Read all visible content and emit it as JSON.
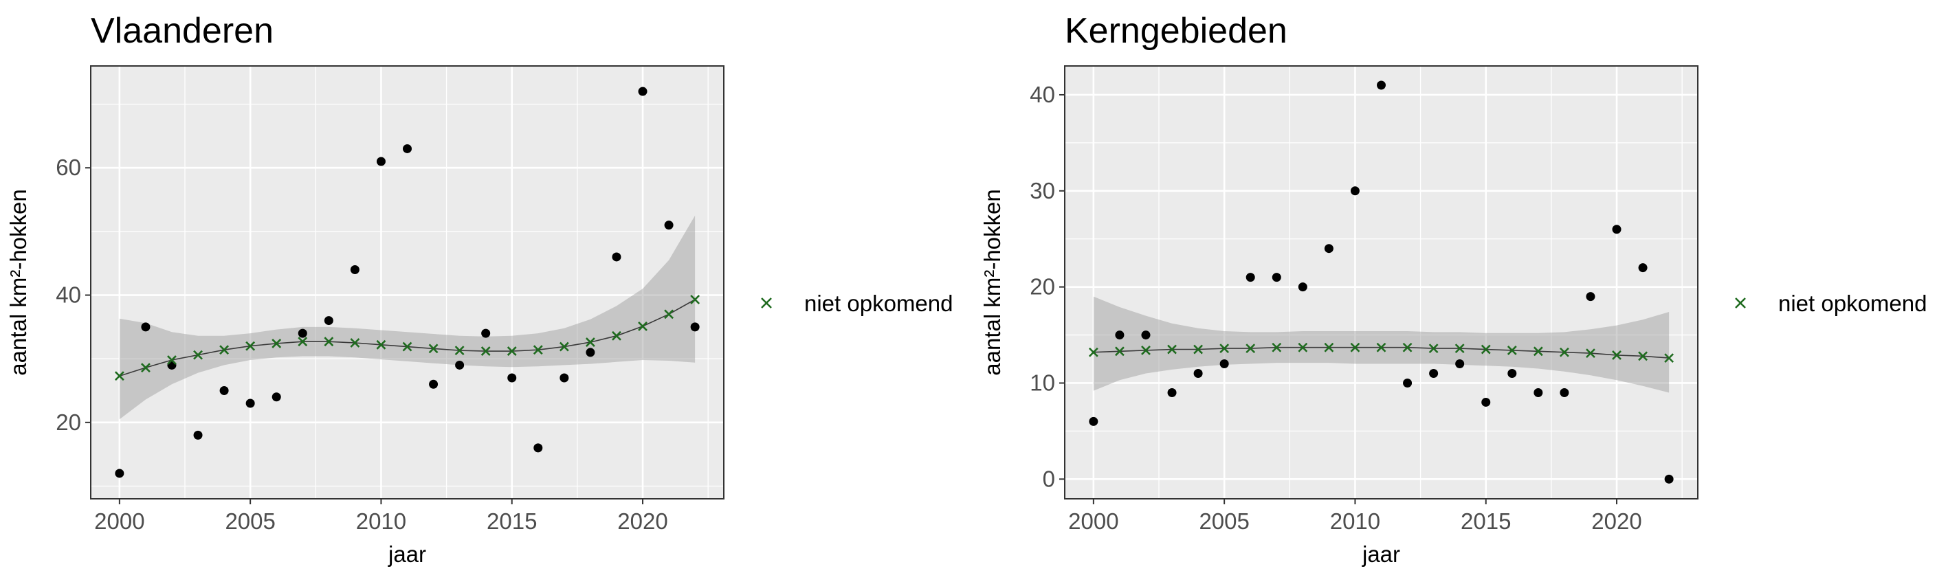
{
  "chart_data": [
    {
      "type": "scatter",
      "title": "Vlaanderen",
      "xlabel": "jaar",
      "ylabel": "aantal km²-hokken",
      "xlim": [
        1998.9,
        2023.1
      ],
      "ylim": [
        8.0,
        76.0
      ],
      "xticks": [
        2000,
        2005,
        2010,
        2015,
        2020
      ],
      "yticks": [
        20,
        40,
        60
      ],
      "x": [
        2000,
        2001,
        2002,
        2003,
        2004,
        2005,
        2006,
        2007,
        2008,
        2009,
        2010,
        2011,
        2012,
        2013,
        2014,
        2015,
        2016,
        2017,
        2018,
        2019,
        2020,
        2021,
        2022
      ],
      "observed": [
        12,
        35,
        29,
        18,
        25,
        23,
        24,
        34,
        36,
        44,
        61,
        63,
        26,
        29,
        34,
        27,
        16,
        27,
        31,
        46,
        72,
        51,
        35
      ],
      "fitted": [
        27.3,
        28.6,
        29.8,
        30.6,
        31.4,
        32.0,
        32.4,
        32.7,
        32.7,
        32.5,
        32.2,
        31.9,
        31.6,
        31.3,
        31.2,
        31.2,
        31.4,
        31.9,
        32.6,
        33.6,
        35.1,
        37.0,
        39.3
      ],
      "ci_lower": [
        20.5,
        23.6,
        26.0,
        27.8,
        29.0,
        29.8,
        30.2,
        30.4,
        30.4,
        30.2,
        29.9,
        29.6,
        29.3,
        29.0,
        28.8,
        28.7,
        28.8,
        29.0,
        29.2,
        29.5,
        29.8,
        29.7,
        29.4
      ],
      "ci_upper": [
        36.3,
        35.6,
        34.2,
        33.6,
        33.6,
        34.0,
        34.6,
        35.0,
        35.0,
        34.8,
        34.5,
        34.2,
        33.9,
        33.6,
        33.5,
        33.6,
        34.0,
        34.8,
        36.2,
        38.3,
        41.0,
        45.5,
        52.5
      ],
      "legend": {
        "label": "niet opkomend",
        "position": "right"
      },
      "colors": {
        "fitted": "#1f6b1f",
        "observed": "#000000",
        "panel_bg": "#ebebeb",
        "ribbon": "#999999"
      },
      "grid": true
    },
    {
      "type": "scatter",
      "title": "Kerngebieden",
      "xlabel": "jaar",
      "ylabel": "aantal km²-hokken",
      "xlim": [
        1998.9,
        2023.1
      ],
      "ylim": [
        -2.05,
        43.0
      ],
      "xticks": [
        2000,
        2005,
        2010,
        2015,
        2020
      ],
      "yticks": [
        0,
        10,
        20,
        30,
        40
      ],
      "x": [
        2000,
        2001,
        2002,
        2003,
        2004,
        2005,
        2006,
        2007,
        2008,
        2009,
        2010,
        2011,
        2012,
        2013,
        2014,
        2015,
        2016,
        2017,
        2018,
        2019,
        2020,
        2021,
        2022
      ],
      "observed": [
        6,
        15,
        15,
        9,
        11,
        12,
        21,
        21,
        20,
        24,
        30,
        41,
        10,
        11,
        12,
        8,
        11,
        9,
        9,
        19,
        26,
        22,
        0
      ],
      "fitted": [
        13.2,
        13.3,
        13.4,
        13.5,
        13.5,
        13.6,
        13.6,
        13.7,
        13.7,
        13.7,
        13.7,
        13.7,
        13.7,
        13.6,
        13.6,
        13.5,
        13.4,
        13.3,
        13.2,
        13.1,
        12.9,
        12.8,
        12.6
      ],
      "ci_lower": [
        9.2,
        10.3,
        11.0,
        11.4,
        11.7,
        11.9,
        12.0,
        12.1,
        12.1,
        12.1,
        12.0,
        12.0,
        12.0,
        12.0,
        11.9,
        11.8,
        11.7,
        11.5,
        11.2,
        10.8,
        10.3,
        9.7,
        9.0
      ],
      "ci_upper": [
        19.0,
        17.9,
        17.0,
        16.2,
        15.7,
        15.4,
        15.3,
        15.3,
        15.4,
        15.4,
        15.4,
        15.4,
        15.4,
        15.3,
        15.3,
        15.2,
        15.2,
        15.2,
        15.3,
        15.6,
        16.0,
        16.6,
        17.4
      ],
      "legend": {
        "label": "niet opkomend",
        "position": "right"
      },
      "colors": {
        "fitted": "#1f6b1f",
        "observed": "#000000",
        "panel_bg": "#ebebeb",
        "ribbon": "#999999"
      },
      "grid": true
    }
  ]
}
